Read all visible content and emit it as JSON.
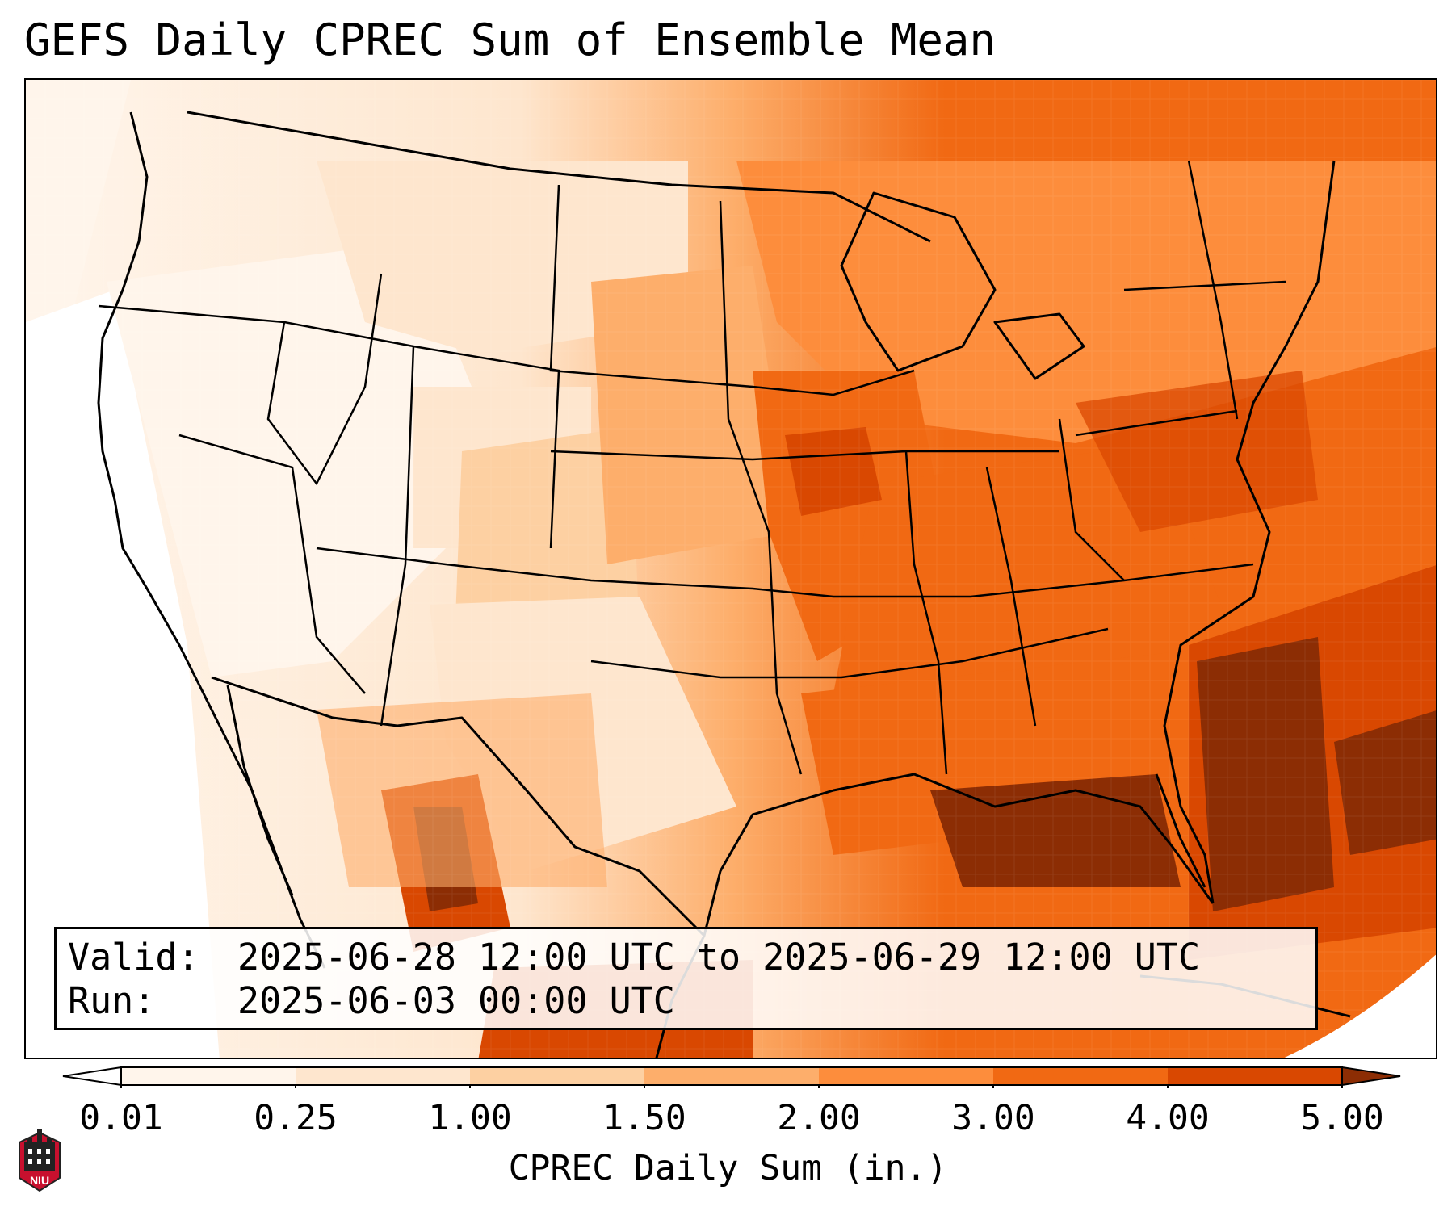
{
  "title": "GEFS Daily CPREC Sum of Ensemble Mean",
  "info_box": {
    "valid_label": "Valid:",
    "valid_value": "2025-06-28 12:00 UTC to 2025-06-29 12:00 UTC",
    "run_label": "Run:",
    "run_value": "2025-06-03 00:00 UTC"
  },
  "colorbar": {
    "label": "CPREC Daily Sum (in.)",
    "ticks": [
      "0.01",
      "0.25",
      "1.00",
      "1.50",
      "2.00",
      "3.00",
      "4.00",
      "5.00"
    ],
    "colors": [
      "#fff5eb",
      "#fee6ce",
      "#fdd0a2",
      "#fdae6b",
      "#fd8d3c",
      "#f16913",
      "#d94801",
      "#8c2d04"
    ],
    "extend": "both"
  },
  "logo": {
    "text": "NIU"
  },
  "palette": {
    "over": "#7f2704",
    "under": "#ffffff"
  }
}
